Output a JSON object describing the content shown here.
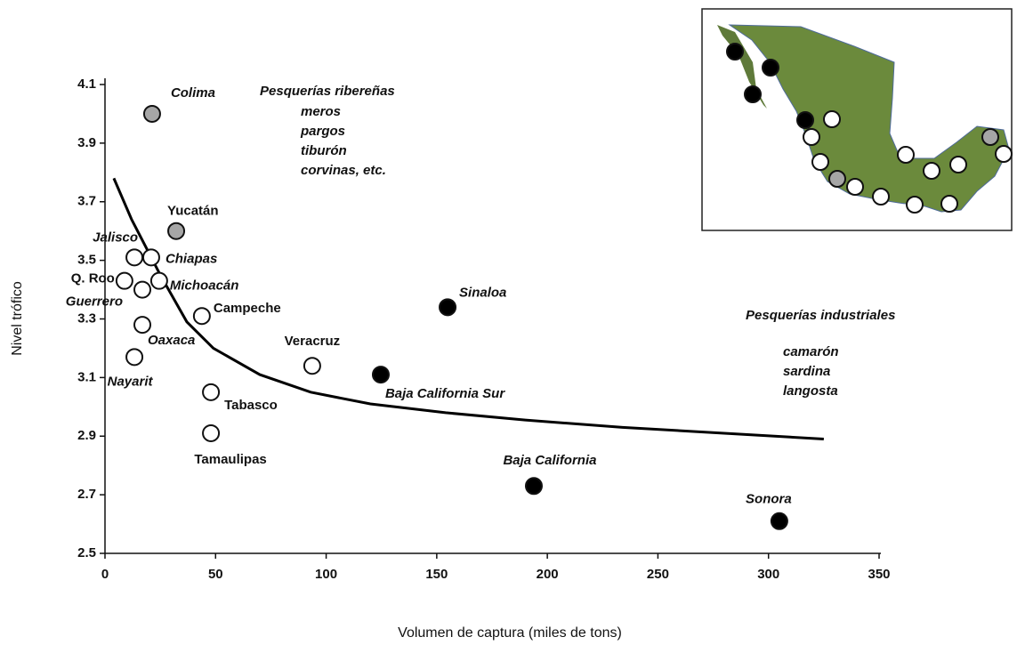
{
  "chart_data": {
    "type": "scatter",
    "x_label": "Volumen de captura (miles de tons)",
    "y_label": "Nivel trófico",
    "xlim": [
      0,
      350
    ],
    "xticks": [
      0,
      50,
      100,
      150,
      200,
      250,
      300,
      350
    ],
    "ylim": [
      2.5,
      4.1
    ],
    "yticks": [
      2.5,
      2.7,
      2.9,
      3.1,
      3.3,
      3.5,
      3.7,
      3.9,
      4.1
    ],
    "labels": [
      "Colima",
      "Yucatán",
      "Jalisco",
      "Chiapas",
      "Q. Roo",
      "Michoacán",
      "Guerrero",
      "Oaxaca",
      "Campeche",
      "Nayarit",
      "Veracruz",
      "Tabasco",
      "Tamaulipas",
      "Sinaloa",
      "Baja California Sur",
      "Baja California",
      "Sonora"
    ],
    "x": [
      21.3,
      32.2,
      13.3,
      20.9,
      8.8,
      24.5,
      16.9,
      16.9,
      43.8,
      13.3,
      93.7,
      47.9,
      47.9,
      154.9,
      124.7,
      193.9,
      304.9
    ],
    "values": [
      4.0,
      3.6,
      3.51,
      3.51,
      3.43,
      3.43,
      3.4,
      3.28,
      3.31,
      3.17,
      3.14,
      3.05,
      2.91,
      3.34,
      3.11,
      2.73,
      2.61
    ],
    "colors": [
      "#a6a6a6",
      "#a6a6a6",
      "#ffffff",
      "#ffffff",
      "#ffffff",
      "#ffffff",
      "#ffffff",
      "#ffffff",
      "#ffffff",
      "#ffffff",
      "#ffffff",
      "#ffffff",
      "#ffffff",
      "#000000",
      "#000000",
      "#000000",
      "#000000"
    ],
    "trend": {
      "x": [
        4,
        12,
        25,
        37,
        49,
        70,
        93,
        120,
        154,
        190,
        234,
        280,
        325
      ],
      "values": [
        3.78,
        3.64,
        3.45,
        3.29,
        3.2,
        3.11,
        3.05,
        3.01,
        2.98,
        2.955,
        2.93,
        2.91,
        2.89
      ]
    },
    "annotations": {
      "artisanal": {
        "title": "Pesquerías ribereñas",
        "items": [
          "meros",
          "pargos",
          "tiburón",
          "corvinas, etc."
        ]
      },
      "industrial": {
        "title": "Pesquerías industriales",
        "items": [
          "camarón",
          "sardina",
          "langosta"
        ]
      }
    }
  }
}
